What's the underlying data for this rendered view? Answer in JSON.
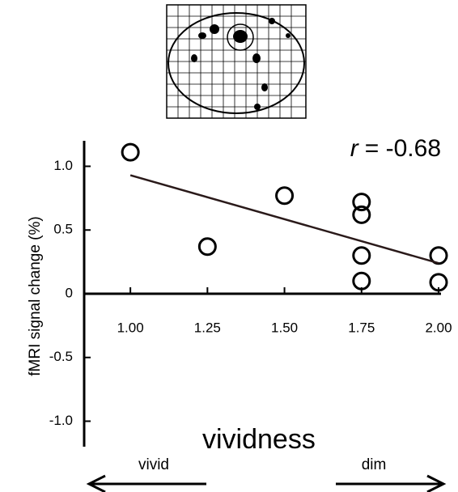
{
  "chart_data": {
    "type": "scatter",
    "x_label": "vividness",
    "y_label": "fMRI signal change (%)",
    "arrow_left": "vivid",
    "arrow_right": "dim",
    "annotation": {
      "symbol": "r",
      "text": "= -0.68"
    },
    "xlim": [
      0.85,
      2.0
    ],
    "ylim": [
      -1.2,
      1.2
    ],
    "xticks": [
      {
        "value": 1,
        "label": "1.00"
      },
      {
        "value": 1.25,
        "label": "1.25"
      },
      {
        "value": 1.5,
        "label": "1.50"
      },
      {
        "value": 1.75,
        "label": "1.75"
      },
      {
        "value": 2,
        "label": "2.00"
      }
    ],
    "yticks": [
      {
        "value": -1,
        "label": "-1.0"
      },
      -0.5,
      0,
      0.5,
      {
        "value": 1,
        "label": "1.0"
      }
    ],
    "series": [
      {
        "type": "scatter",
        "color": "#000000",
        "x": [
          1.0,
          1.25,
          1.5,
          1.75,
          1.75,
          1.75,
          1.75,
          2.0,
          2.0
        ],
        "values": [
          1.11,
          0.37,
          0.77,
          0.72,
          0.62,
          0.3,
          0.1,
          0.3,
          0.09
        ]
      },
      {
        "type": "line",
        "color": "#2a1a1a",
        "x": [
          1.0,
          2.0
        ],
        "values": [
          0.93,
          0.24
        ]
      }
    ]
  }
}
